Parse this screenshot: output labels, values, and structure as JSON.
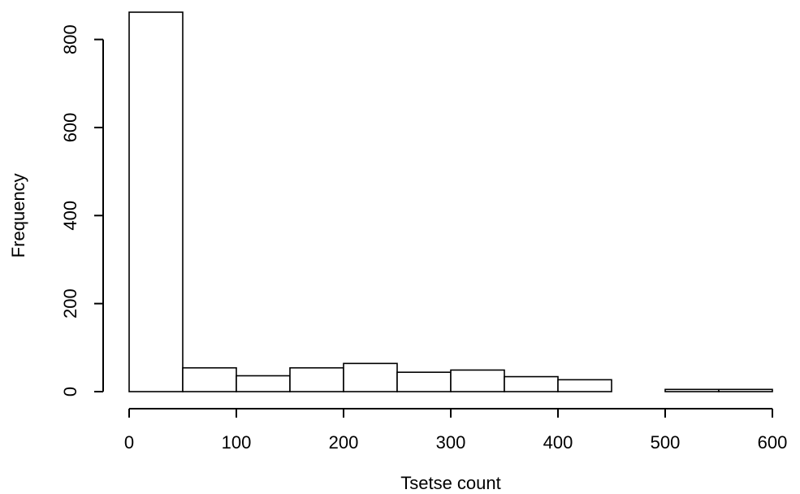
{
  "chart_data": {
    "type": "bar",
    "subtype": "histogram",
    "title": "",
    "xlabel": "Tsetse count",
    "ylabel": "Frequency",
    "bins": [
      {
        "start": 0,
        "end": 50,
        "value": 862
      },
      {
        "start": 50,
        "end": 100,
        "value": 54
      },
      {
        "start": 100,
        "end": 150,
        "value": 36
      },
      {
        "start": 150,
        "end": 200,
        "value": 54
      },
      {
        "start": 200,
        "end": 250,
        "value": 64
      },
      {
        "start": 250,
        "end": 300,
        "value": 44
      },
      {
        "start": 300,
        "end": 350,
        "value": 49
      },
      {
        "start": 350,
        "end": 400,
        "value": 34
      },
      {
        "start": 400,
        "end": 450,
        "value": 27
      },
      {
        "start": 450,
        "end": 500,
        "value": 0
      },
      {
        "start": 500,
        "end": 550,
        "value": 5
      },
      {
        "start": 550,
        "end": 600,
        "value": 5
      }
    ],
    "xlim": [
      0,
      600
    ],
    "ylim": [
      0,
      862
    ],
    "x_ticks": [
      0,
      100,
      200,
      300,
      400,
      500,
      600
    ],
    "y_ticks": [
      0,
      200,
      400,
      600,
      800
    ],
    "grid": false,
    "legend": "none",
    "colors": {
      "bar_fill": "#ffffff",
      "bar_stroke": "#000000"
    }
  }
}
